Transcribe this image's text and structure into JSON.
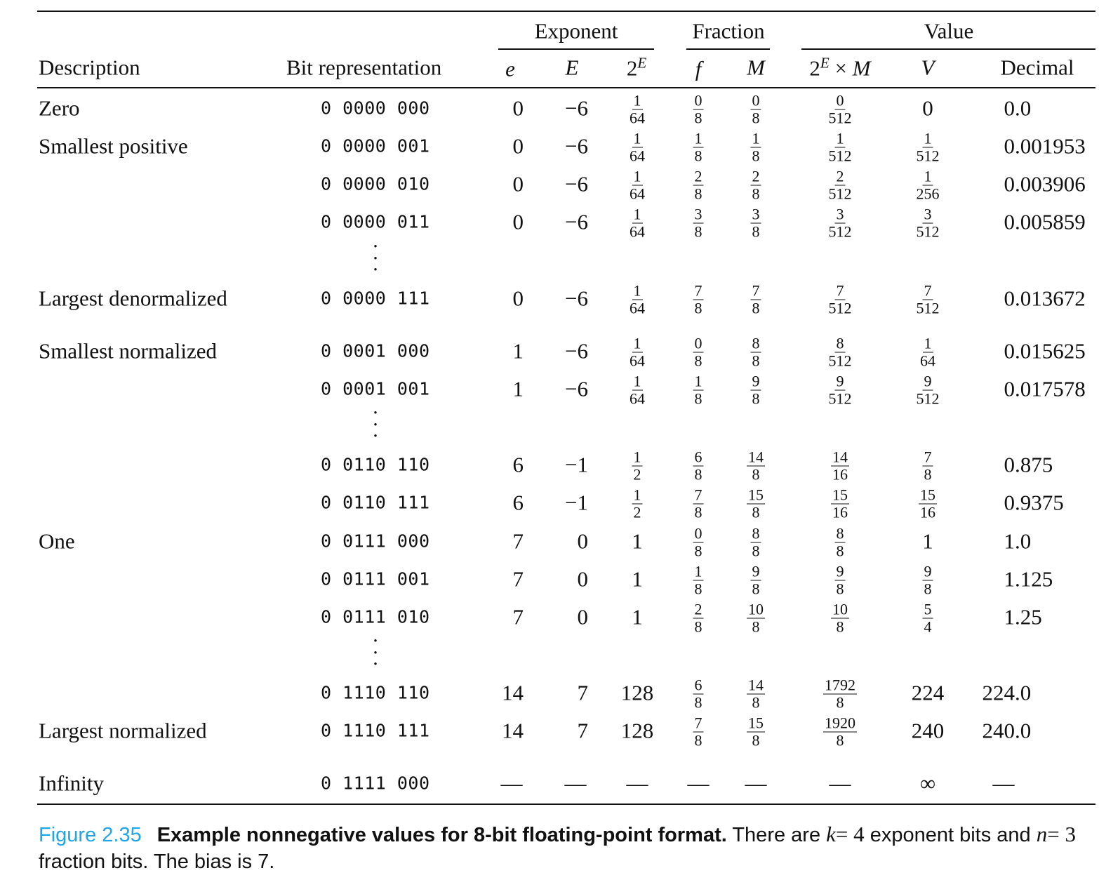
{
  "header": {
    "groups": {
      "exponent": "Exponent",
      "fraction": "Fraction",
      "value": "Value"
    },
    "columns": {
      "description": "Description",
      "bits": "Bit representation",
      "e": "e",
      "E": "E",
      "twoE_base": "2",
      "twoE_sup": "E",
      "f": "f",
      "M": "M",
      "prod_base": "2",
      "prod_sup": "E",
      "prod_times": "×",
      "prod_M": "M",
      "V": "V",
      "decimal": "Decimal"
    }
  },
  "rows": [
    {
      "desc": "Zero",
      "bits": "0 0000 000",
      "e": "0",
      "E": "−6",
      "twoE": {
        "n": "1",
        "d": "64"
      },
      "f": {
        "n": "0",
        "d": "8"
      },
      "M": {
        "n": "0",
        "d": "8"
      },
      "prod": {
        "n": "0",
        "d": "512"
      },
      "V": "0",
      "dec": "0.0"
    },
    {
      "desc": "Smallest positive",
      "bits": "0 0000 001",
      "e": "0",
      "E": "−6",
      "twoE": {
        "n": "1",
        "d": "64"
      },
      "f": {
        "n": "1",
        "d": "8"
      },
      "M": {
        "n": "1",
        "d": "8"
      },
      "prod": {
        "n": "1",
        "d": "512"
      },
      "V": {
        "n": "1",
        "d": "512"
      },
      "dec": "0.001953"
    },
    {
      "desc": "",
      "bits": "0 0000 010",
      "e": "0",
      "E": "−6",
      "twoE": {
        "n": "1",
        "d": "64"
      },
      "f": {
        "n": "2",
        "d": "8"
      },
      "M": {
        "n": "2",
        "d": "8"
      },
      "prod": {
        "n": "2",
        "d": "512"
      },
      "V": {
        "n": "1",
        "d": "256"
      },
      "dec": "0.003906"
    },
    {
      "desc": "",
      "bits": "0 0000 011",
      "e": "0",
      "E": "−6",
      "twoE": {
        "n": "1",
        "d": "64"
      },
      "f": {
        "n": "3",
        "d": "8"
      },
      "M": {
        "n": "3",
        "d": "8"
      },
      "prod": {
        "n": "3",
        "d": "512"
      },
      "V": {
        "n": "3",
        "d": "512"
      },
      "dec": "0.005859"
    },
    {
      "dots": "⋮"
    },
    {
      "desc": "Largest denormalized",
      "bits": "0 0000 111",
      "e": "0",
      "E": "−6",
      "twoE": {
        "n": "1",
        "d": "64"
      },
      "f": {
        "n": "7",
        "d": "8"
      },
      "M": {
        "n": "7",
        "d": "8"
      },
      "prod": {
        "n": "7",
        "d": "512"
      },
      "V": {
        "n": "7",
        "d": "512"
      },
      "dec": "0.013672"
    },
    {
      "desc": "Smallest normalized",
      "bits": "0 0001 000",
      "e": "1",
      "E": "−6",
      "twoE": {
        "n": "1",
        "d": "64"
      },
      "f": {
        "n": "0",
        "d": "8"
      },
      "M": {
        "n": "8",
        "d": "8"
      },
      "prod": {
        "n": "8",
        "d": "512"
      },
      "V": {
        "n": "1",
        "d": "64"
      },
      "dec": "0.015625"
    },
    {
      "desc": "",
      "bits": "0 0001 001",
      "e": "1",
      "E": "−6",
      "twoE": {
        "n": "1",
        "d": "64"
      },
      "f": {
        "n": "1",
        "d": "8"
      },
      "M": {
        "n": "9",
        "d": "8"
      },
      "prod": {
        "n": "9",
        "d": "512"
      },
      "V": {
        "n": "9",
        "d": "512"
      },
      "dec": "0.017578"
    },
    {
      "dots": "⋮"
    },
    {
      "desc": "",
      "bits": "0 0110 110",
      "e": "6",
      "E": "−1",
      "twoE": {
        "n": "1",
        "d": "2"
      },
      "f": {
        "n": "6",
        "d": "8"
      },
      "M": {
        "n": "14",
        "d": "8"
      },
      "prod": {
        "n": "14",
        "d": "16"
      },
      "V": {
        "n": "7",
        "d": "8"
      },
      "dec": "0.875"
    },
    {
      "desc": "",
      "bits": "0 0110 111",
      "e": "6",
      "E": "−1",
      "twoE": {
        "n": "1",
        "d": "2"
      },
      "f": {
        "n": "7",
        "d": "8"
      },
      "M": {
        "n": "15",
        "d": "8"
      },
      "prod": {
        "n": "15",
        "d": "16"
      },
      "V": {
        "n": "15",
        "d": "16"
      },
      "dec": "0.9375"
    },
    {
      "desc": "One",
      "bits": "0 0111 000",
      "e": "7",
      "E": "0",
      "twoE": "1",
      "f": {
        "n": "0",
        "d": "8"
      },
      "M": {
        "n": "8",
        "d": "8"
      },
      "prod": {
        "n": "8",
        "d": "8"
      },
      "V": "1",
      "dec": "1.0"
    },
    {
      "desc": "",
      "bits": "0 0111 001",
      "e": "7",
      "E": "0",
      "twoE": "1",
      "f": {
        "n": "1",
        "d": "8"
      },
      "M": {
        "n": "9",
        "d": "8"
      },
      "prod": {
        "n": "9",
        "d": "8"
      },
      "V": {
        "n": "9",
        "d": "8"
      },
      "dec": "1.125"
    },
    {
      "desc": "",
      "bits": "0 0111 010",
      "e": "7",
      "E": "0",
      "twoE": "1",
      "f": {
        "n": "2",
        "d": "8"
      },
      "M": {
        "n": "10",
        "d": "8"
      },
      "prod": {
        "n": "10",
        "d": "8"
      },
      "V": {
        "n": "5",
        "d": "4"
      },
      "dec": "1.25"
    },
    {
      "dots": "⋮"
    },
    {
      "desc": "",
      "bits": "0 1110 110",
      "e": "14",
      "E": "7",
      "twoE": "128",
      "f": {
        "n": "6",
        "d": "8"
      },
      "M": {
        "n": "14",
        "d": "8"
      },
      "prod": {
        "n": "1792",
        "d": "8"
      },
      "V": "224",
      "dec": "224.0"
    },
    {
      "desc": "Largest normalized",
      "bits": "0 1110 111",
      "e": "14",
      "E": "7",
      "twoE": "128",
      "f": {
        "n": "7",
        "d": "8"
      },
      "M": {
        "n": "15",
        "d": "8"
      },
      "prod": {
        "n": "1920",
        "d": "8"
      },
      "V": "240",
      "dec": "240.0"
    },
    {
      "desc": "Infinity",
      "bits": "0 1111 000",
      "e": "—",
      "E": "—",
      "twoE": "—",
      "f": "—",
      "M": "—",
      "prod": "—",
      "V": "∞",
      "dec": "—"
    }
  ],
  "caption": {
    "figure": "Figure 2.35",
    "title": "Example nonnegative values for 8-bit floating-point format.",
    "t1": "There are",
    "k": "k",
    "eq1": "= 4",
    "t2": "exponent bits and",
    "n": "n",
    "eq2": "= 3",
    "t3": "fraction bits. The bias is 7."
  },
  "colors": {
    "figure_label": "#1ea6e6",
    "text": "#111111"
  }
}
